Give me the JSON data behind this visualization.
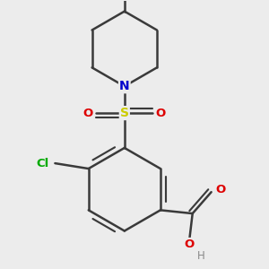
{
  "bg_color": "#ececec",
  "bond_color": "#3a3a3a",
  "bond_width": 1.8,
  "atom_colors": {
    "C": "#3a3a3a",
    "N": "#0000cc",
    "O": "#dd0000",
    "S": "#cccc00",
    "Cl": "#00aa00",
    "H": "#888888"
  },
  "figsize": [
    3.0,
    3.0
  ],
  "dpi": 100
}
